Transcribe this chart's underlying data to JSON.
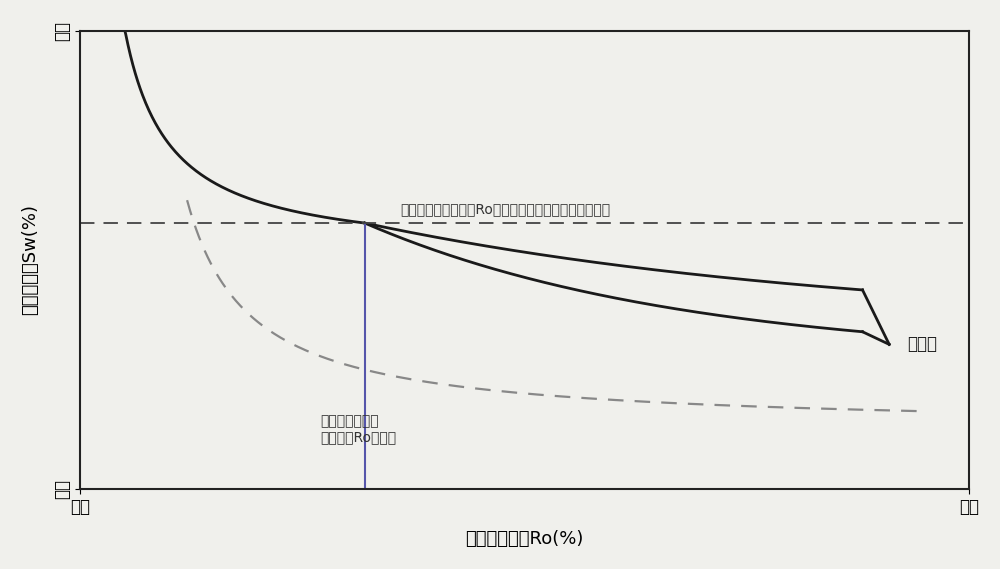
{
  "background_color": "#f0f0ec",
  "plot_bg_color": "#f0f0ec",
  "border_color": "#222222",
  "xlabel": "有机质成熟度Ro(%)",
  "ylabel": "含水饱和度Sw(%)",
  "x_low_label": "低值",
  "x_high_label": "高值",
  "y_low_label": "低值",
  "y_high_label": "高值",
  "annotation_horizontal": "获得商业油气产量的Ro下限值对应的含水饱和度上限值",
  "annotation_vertical_line1": "获得商业油气产",
  "annotation_vertical_line2": "量对应的Ro下限值",
  "envelope_label": "包络线",
  "solid_curve_color": "#1a1a1a",
  "dashed_curve_color": "#888888",
  "vertical_line_color": "#5555aa",
  "horizontal_line_color": "#444444",
  "xlabel_fontsize": 13,
  "ylabel_fontsize": 13,
  "tick_label_fontsize": 12,
  "annotation_fontsize": 10,
  "envelope_fontsize": 12,
  "xlim": [
    0,
    10
  ],
  "ylim": [
    0,
    10
  ],
  "x_intercept": 3.2,
  "y_intercept": 5.8
}
